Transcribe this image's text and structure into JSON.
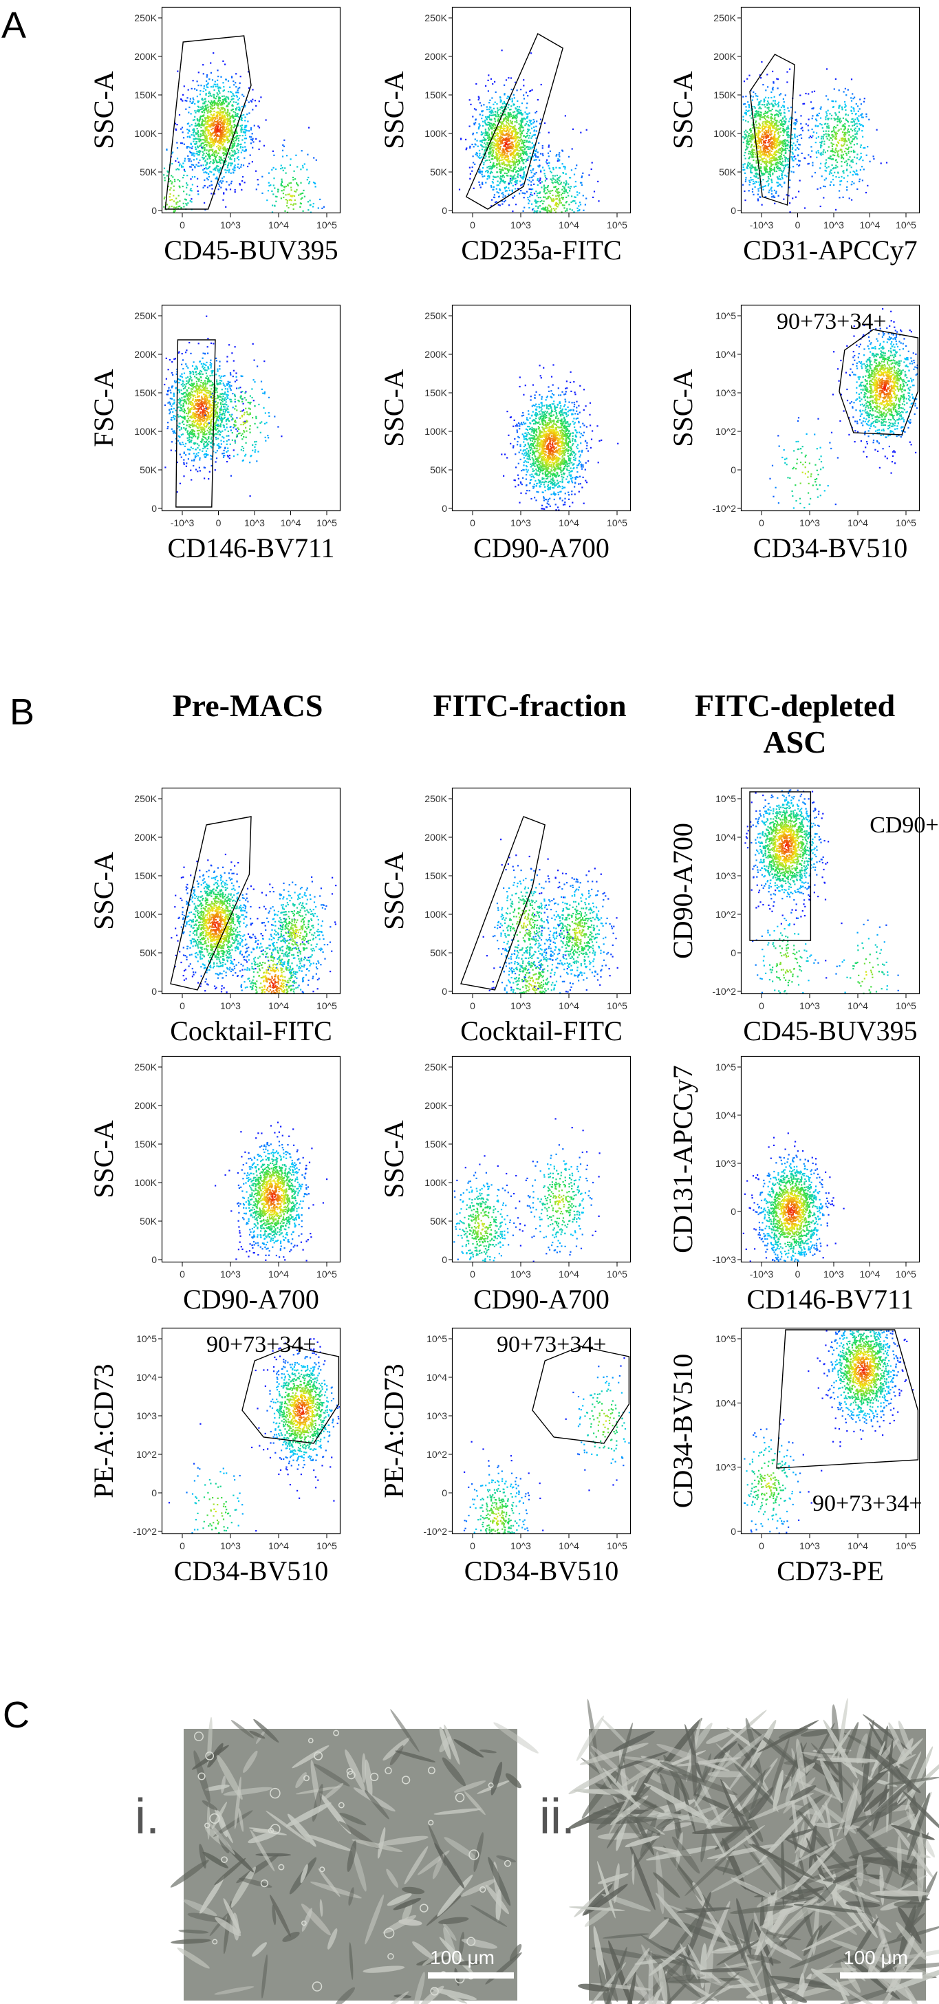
{
  "panels": {
    "A": "A",
    "B": "B",
    "C": "C"
  },
  "column_headers": {
    "pre_macs": "Pre-MACS",
    "fitc_fraction": "FITC-fraction",
    "fitc_depleted_line1": "FITC-depleted",
    "fitc_depleted_line2": "ASC"
  },
  "micrographs": {
    "i": {
      "label": "i.",
      "scale": "100 μm"
    },
    "ii": {
      "label": "ii.",
      "scale": "100 μm"
    }
  },
  "chart_data": [
    {
      "id": "A1",
      "type": "scatter",
      "xlabel": "CD45-BUV395",
      "ylabel": "SSC-A",
      "yticks": [
        "0",
        "50K",
        "100K",
        "150K",
        "200K",
        "250K"
      ],
      "xticks": [
        "0",
        "10^3",
        "10^4",
        "10^5"
      ],
      "gate_label": "",
      "clusters": [
        {
          "x": 0.31,
          "y": 0.41,
          "n": 1400
        },
        {
          "x": 0.05,
          "y": 0.08,
          "n": 250
        },
        {
          "x": 0.72,
          "y": 0.08,
          "n": 200
        }
      ]
    },
    {
      "id": "A2",
      "type": "scatter",
      "xlabel": "CD235a-FITC",
      "ylabel": "SSC-A",
      "yticks": [
        "0",
        "50K",
        "100K",
        "150K",
        "200K",
        "250K"
      ],
      "xticks": [
        "0",
        "10^3",
        "10^4",
        "10^5"
      ],
      "gate_label": "",
      "clusters": [
        {
          "x": 0.3,
          "y": 0.34,
          "n": 1400
        },
        {
          "x": 0.57,
          "y": 0.05,
          "n": 500
        }
      ]
    },
    {
      "id": "A3",
      "type": "scatter",
      "xlabel": "CD31-APCCy7",
      "ylabel": "SSC-A",
      "yticks": [
        "0",
        "50K",
        "100K",
        "150K",
        "200K",
        "250K"
      ],
      "xticks": [
        "-10^3",
        "0",
        "10^3",
        "10^4",
        "10^5"
      ],
      "gate_label": "",
      "clusters": [
        {
          "x": 0.14,
          "y": 0.35,
          "n": 1300
        },
        {
          "x": 0.55,
          "y": 0.35,
          "n": 500
        }
      ]
    },
    {
      "id": "A4",
      "type": "scatter",
      "xlabel": "CD146-BV711",
      "ylabel": "FSC-A",
      "yticks": [
        "0",
        "50K",
        "100K",
        "150K",
        "200K",
        "250K"
      ],
      "xticks": [
        "-10^3",
        "0",
        "10^3",
        "10^4",
        "10^5"
      ],
      "gate_label": "",
      "clusters": [
        {
          "x": 0.22,
          "y": 0.5,
          "n": 1300
        },
        {
          "x": 0.45,
          "y": 0.45,
          "n": 200
        }
      ]
    },
    {
      "id": "A5",
      "type": "scatter",
      "xlabel": "CD90-A700",
      "ylabel": "SSC-A",
      "yticks": [
        "0",
        "50K",
        "100K",
        "150K",
        "200K",
        "250K"
      ],
      "xticks": [
        "0",
        "10^3",
        "10^4",
        "10^5"
      ],
      "gate_label": "",
      "clusters": [
        {
          "x": 0.55,
          "y": 0.32,
          "n": 1700
        }
      ]
    },
    {
      "id": "A6",
      "type": "scatter",
      "xlabel": "CD34-BV510",
      "ylabel": "SSC-A",
      "yticks": [
        "-10^2",
        "0",
        "10^2",
        "10^3",
        "10^4",
        "10^5"
      ],
      "xticks": [
        "0",
        "10^3",
        "10^4",
        "10^5"
      ],
      "gate_label": "90+73+34+",
      "clusters": [
        {
          "x": 0.8,
          "y": 0.6,
          "n": 1300
        },
        {
          "x": 0.35,
          "y": 0.18,
          "n": 90
        }
      ]
    },
    {
      "id": "B1",
      "type": "scatter",
      "xlabel": "Cocktail-FITC",
      "ylabel": "SSC-A",
      "yticks": [
        "0",
        "50K",
        "100K",
        "150K",
        "200K",
        "250K"
      ],
      "xticks": [
        "0",
        "10^3",
        "10^4",
        "10^5"
      ],
      "gate_label": "",
      "clusters": [
        {
          "x": 0.3,
          "y": 0.34,
          "n": 1400
        },
        {
          "x": 0.62,
          "y": 0.05,
          "n": 700
        },
        {
          "x": 0.75,
          "y": 0.3,
          "n": 500
        }
      ]
    },
    {
      "id": "B2",
      "type": "scatter",
      "xlabel": "Cocktail-FITC",
      "ylabel": "SSC-A",
      "yticks": [
        "0",
        "50K",
        "100K",
        "150K",
        "200K",
        "250K"
      ],
      "xticks": [
        "0",
        "10^3",
        "10^4",
        "10^5"
      ],
      "gate_label": "",
      "clusters": [
        {
          "x": 0.45,
          "y": 0.05,
          "n": 500
        },
        {
          "x": 0.7,
          "y": 0.3,
          "n": 600
        },
        {
          "x": 0.4,
          "y": 0.35,
          "n": 400
        }
      ]
    },
    {
      "id": "B3",
      "type": "scatter",
      "xlabel": "CD45-BUV395",
      "ylabel": "CD90-A700",
      "yticks": [
        "-10^2",
        "0",
        "10^2",
        "10^3",
        "10^4",
        "10^5"
      ],
      "xticks": [
        "0",
        "10^3",
        "10^4",
        "10^5"
      ],
      "gate_label": "CD90+",
      "clusters": [
        {
          "x": 0.25,
          "y": 0.72,
          "n": 1500
        },
        {
          "x": 0.25,
          "y": 0.15,
          "n": 150
        },
        {
          "x": 0.7,
          "y": 0.1,
          "n": 90
        }
      ]
    },
    {
      "id": "B4",
      "type": "scatter",
      "xlabel": "CD90-A700",
      "ylabel": "SSC-A",
      "yticks": [
        "0",
        "50K",
        "100K",
        "150K",
        "200K",
        "250K"
      ],
      "xticks": [
        "0",
        "10^3",
        "10^4",
        "10^5"
      ],
      "gate_label": "",
      "clusters": [
        {
          "x": 0.62,
          "y": 0.32,
          "n": 1400
        }
      ]
    },
    {
      "id": "B5",
      "type": "scatter",
      "xlabel": "CD90-A700",
      "ylabel": "SSC-A",
      "yticks": [
        "0",
        "50K",
        "100K",
        "150K",
        "200K",
        "250K"
      ],
      "xticks": [
        "0",
        "10^3",
        "10^4",
        "10^5"
      ],
      "gate_label": "",
      "clusters": [
        {
          "x": 0.16,
          "y": 0.18,
          "n": 450
        },
        {
          "x": 0.6,
          "y": 0.3,
          "n": 350
        }
      ]
    },
    {
      "id": "B6",
      "type": "scatter",
      "xlabel": "CD146-BV711",
      "ylabel": "CD131-APCCy7",
      "yticks": [
        "-10^3",
        "0",
        "10^3",
        "10^4",
        "10^5"
      ],
      "xticks": [
        "-10^3",
        "0",
        "10^3",
        "10^4",
        "10^5"
      ],
      "gate_label": "",
      "clusters": [
        {
          "x": 0.28,
          "y": 0.25,
          "n": 1500
        }
      ]
    },
    {
      "id": "B7",
      "type": "scatter",
      "xlabel": "CD34-BV510",
      "ylabel": "PE-A:CD73",
      "yticks": [
        "-10^2",
        "0",
        "10^2",
        "10^3",
        "10^4",
        "10^5"
      ],
      "xticks": [
        "0",
        "10^3",
        "10^4",
        "10^5"
      ],
      "gate_label": "90+73+34+",
      "clusters": [
        {
          "x": 0.78,
          "y": 0.6,
          "n": 1200
        },
        {
          "x": 0.3,
          "y": 0.12,
          "n": 100
        }
      ]
    },
    {
      "id": "B8",
      "type": "scatter",
      "xlabel": "CD34-BV510",
      "ylabel": "PE-A:CD73",
      "yticks": [
        "-10^2",
        "0",
        "10^2",
        "10^3",
        "10^4",
        "10^5"
      ],
      "xticks": [
        "0",
        "10^3",
        "10^4",
        "10^5"
      ],
      "gate_label": "90+73+34+",
      "clusters": [
        {
          "x": 0.25,
          "y": 0.08,
          "n": 400
        },
        {
          "x": 0.85,
          "y": 0.55,
          "n": 150
        }
      ]
    },
    {
      "id": "B9",
      "type": "scatter",
      "xlabel": "CD73-PE",
      "ylabel": "CD34-BV510",
      "yticks": [
        "0",
        "10^3",
        "10^4",
        "10^5"
      ],
      "xticks": [
        "0",
        "10^3",
        "10^4",
        "10^5"
      ],
      "gate_label": "90+73+34+",
      "clusters": [
        {
          "x": 0.68,
          "y": 0.8,
          "n": 1400
        },
        {
          "x": 0.15,
          "y": 0.25,
          "n": 250
        }
      ]
    }
  ]
}
